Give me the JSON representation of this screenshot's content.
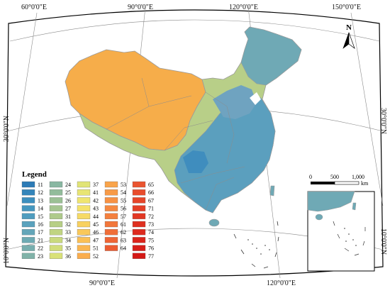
{
  "coordinate_labels": {
    "top": [
      "60°0'0\"E",
      "90°0'0\"E",
      "120°0'0\"E",
      "150°0'0\"E"
    ],
    "bottom": [
      "90°0'0\"E",
      "120°0'0\"E"
    ],
    "left": [
      "30°0'0\"N",
      "10°0'0\"N"
    ],
    "right": [
      "30°0'0\"N",
      "10°0'0\"N"
    ]
  },
  "north_arrow": {
    "label": "N"
  },
  "legend": {
    "title": "Legend",
    "classes": [
      {
        "label": "11",
        "color": "#2c7bb6"
      },
      {
        "label": "12",
        "color": "#3485ba"
      },
      {
        "label": "13",
        "color": "#3c8fbe"
      },
      {
        "label": "14",
        "color": "#4597bf"
      },
      {
        "label": "15",
        "color": "#4f9dbf"
      },
      {
        "label": "16",
        "color": "#5aa2bd"
      },
      {
        "label": "17",
        "color": "#64a6b9"
      },
      {
        "label": "21",
        "color": "#6daab3"
      },
      {
        "label": "22",
        "color": "#77aeae"
      },
      {
        "label": "23",
        "color": "#80b2a8"
      },
      {
        "label": "24",
        "color": "#89b7a2"
      },
      {
        "label": "25",
        "color": "#92bc9b"
      },
      {
        "label": "26",
        "color": "#9bc095"
      },
      {
        "label": "27",
        "color": "#a5c590"
      },
      {
        "label": "31",
        "color": "#aeca8b"
      },
      {
        "label": "32",
        "color": "#b7cf86"
      },
      {
        "label": "33",
        "color": "#c0d482"
      },
      {
        "label": "34",
        "color": "#c9d97e"
      },
      {
        "label": "35",
        "color": "#d1dd7b"
      },
      {
        "label": "36",
        "color": "#d9e178"
      },
      {
        "label": "37",
        "color": "#e1e476"
      },
      {
        "label": "41",
        "color": "#e8e574"
      },
      {
        "label": "42",
        "color": "#efe570"
      },
      {
        "label": "43",
        "color": "#f4e26b"
      },
      {
        "label": "44",
        "color": "#f6da65"
      },
      {
        "label": "45",
        "color": "#f8d15f"
      },
      {
        "label": "46",
        "color": "#f9c85a"
      },
      {
        "label": "47",
        "color": "#faBf55"
      },
      {
        "label": "51",
        "color": "#fab651"
      },
      {
        "label": "52",
        "color": "#faad4d"
      },
      {
        "label": "53",
        "color": "#f9a44a"
      },
      {
        "label": "54",
        "color": "#f89b47"
      },
      {
        "label": "55",
        "color": "#f79244"
      },
      {
        "label": "56",
        "color": "#f58941"
      },
      {
        "label": "57",
        "color": "#f4803e"
      },
      {
        "label": "61",
        "color": "#f2773b"
      },
      {
        "label": "62",
        "color": "#f06e38"
      },
      {
        "label": "63",
        "color": "#ee6535"
      },
      {
        "label": "64",
        "color": "#ec5c32"
      },
      {
        "label": "65",
        "color": "#ea542f"
      },
      {
        "label": "66",
        "color": "#e84c2c"
      },
      {
        "label": "67",
        "color": "#e64529"
      },
      {
        "label": "71",
        "color": "#e43e26"
      },
      {
        "label": "72",
        "color": "#e23723"
      },
      {
        "label": "73",
        "color": "#df3020"
      },
      {
        "label": "74",
        "color": "#dd2a1e"
      },
      {
        "label": "75",
        "color": "#da241b"
      },
      {
        "label": "76",
        "color": "#d71e19"
      },
      {
        "label": "77",
        "color": "#d41916"
      }
    ]
  },
  "scale_bar": {
    "ticks": [
      "0",
      "500",
      "1,000"
    ],
    "unit": "km"
  },
  "colors": {
    "frame": "#000000",
    "graticule": "#8a8a8a",
    "boundary": "#9a9a9a",
    "west": "#f6ad4a",
    "central": "#b8cf88",
    "east": "#5b9fbe",
    "northeast": "#6fa9b5"
  }
}
